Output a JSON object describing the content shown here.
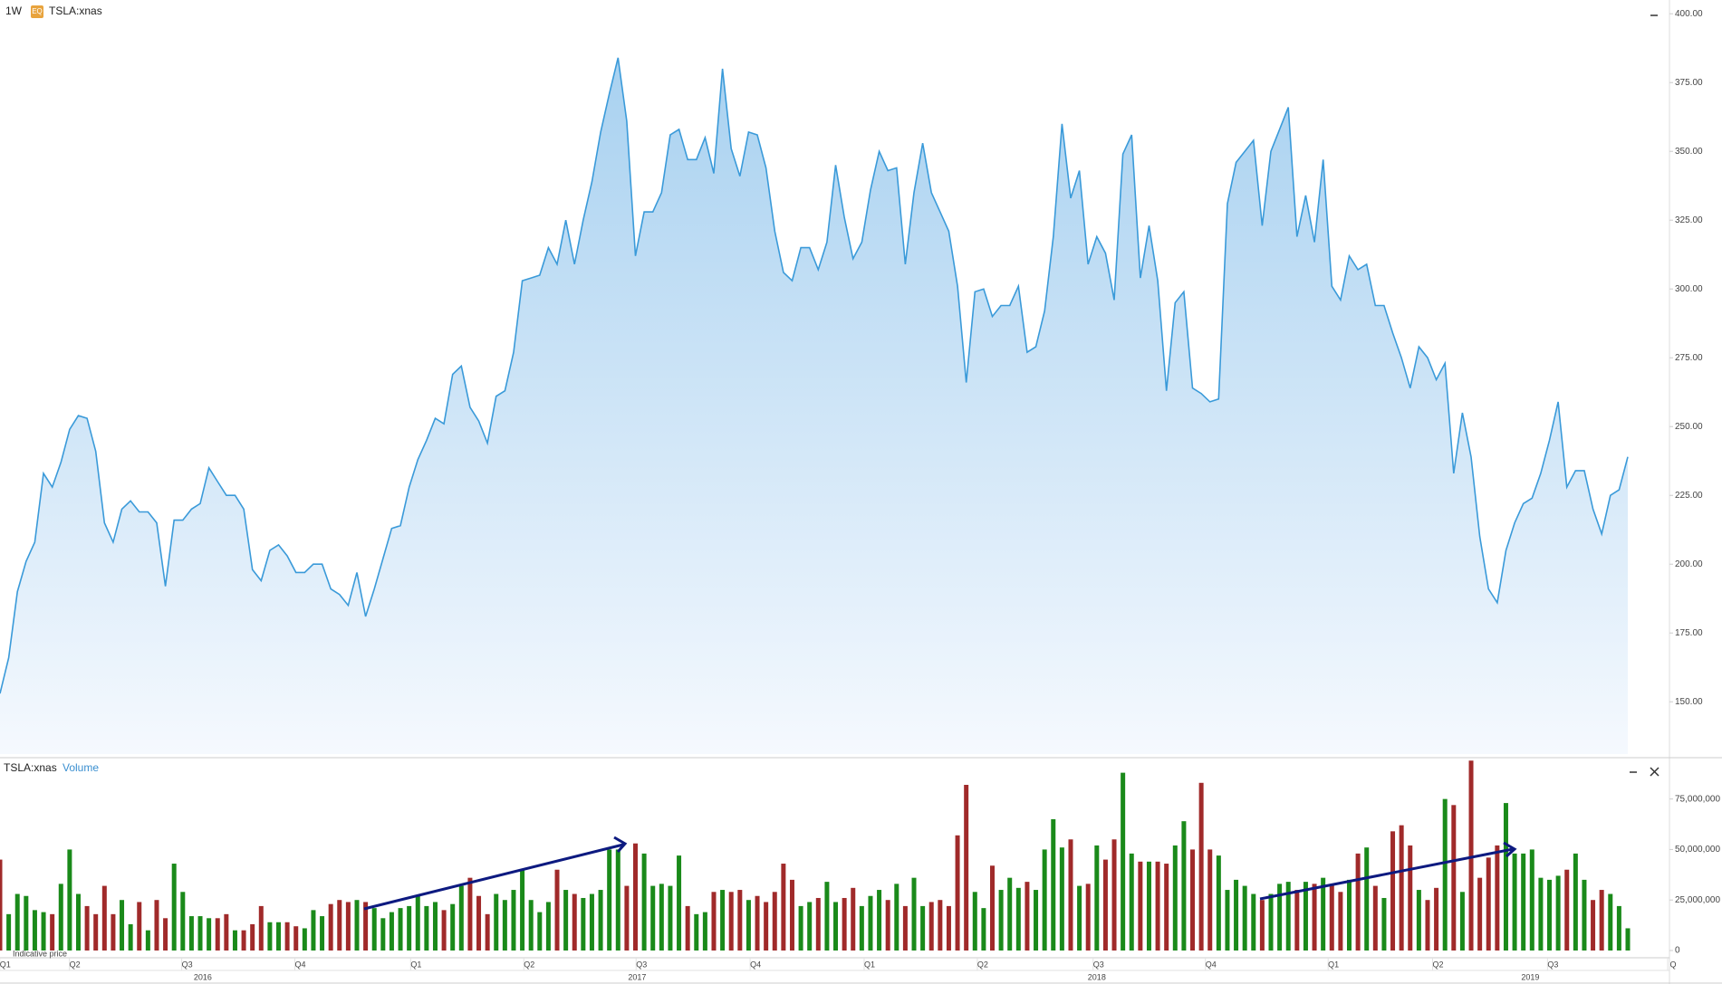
{
  "header": {
    "interval": "1W",
    "badge": "EQ",
    "symbol": "TSLA:xnas",
    "volume_symbol": "TSLA:xnas",
    "volume_label": "Volume",
    "note": "Indicative price"
  },
  "chart_data": [
    {
      "type": "area",
      "color": "#3a9ad9",
      "ylim": [
        131,
        405
      ],
      "yticks": [
        {
          "value": 150,
          "label": "150.00"
        },
        {
          "value": 175,
          "label": "175.00"
        },
        {
          "value": 200,
          "label": "200.00"
        },
        {
          "value": 225,
          "label": "225.00"
        },
        {
          "value": 250,
          "label": "250.00"
        },
        {
          "value": 275,
          "label": "275.00"
        },
        {
          "value": 300,
          "label": "300.00"
        },
        {
          "value": 325,
          "label": "325.00"
        },
        {
          "value": 350,
          "label": "350.00"
        },
        {
          "value": 375,
          "label": "375.00"
        },
        {
          "value": 400,
          "label": "400.00"
        }
      ],
      "values": [
        153,
        166,
        190,
        201,
        208,
        233,
        228,
        237,
        249,
        254,
        253,
        241,
        215,
        208,
        220,
        223,
        219,
        219,
        215,
        192,
        216,
        216,
        220,
        222,
        235,
        230,
        225,
        225,
        220,
        198,
        194,
        205,
        207,
        203,
        197,
        197,
        200,
        200,
        191,
        189,
        185,
        197,
        181,
        191,
        202,
        213,
        214,
        228,
        238,
        245,
        253,
        251,
        269,
        272,
        257,
        252,
        244,
        261,
        263,
        277,
        303,
        304,
        305,
        315,
        309,
        325,
        309,
        325,
        339,
        357,
        371,
        384,
        361,
        312,
        328,
        328,
        335,
        356,
        358,
        347,
        347,
        355,
        342,
        380,
        351,
        341,
        357,
        356,
        344,
        321,
        306,
        303,
        315,
        315,
        307,
        317,
        345,
        326,
        311,
        317,
        336,
        350,
        343,
        344,
        309,
        335,
        353,
        335,
        328,
        321,
        301,
        266,
        299,
        300,
        290,
        294,
        294,
        301,
        277,
        279,
        292,
        319,
        360,
        333,
        343,
        309,
        319,
        313,
        296,
        349,
        356,
        304,
        323,
        303,
        263,
        295,
        299,
        264,
        262,
        259,
        260,
        331,
        346,
        350,
        354,
        323,
        350,
        358,
        366,
        319,
        334,
        317,
        347,
        301,
        296,
        312,
        307,
        309,
        294,
        294,
        284,
        275,
        264,
        279,
        275,
        267,
        273,
        233,
        255,
        239,
        210,
        191,
        186,
        205,
        215,
        222,
        224,
        233,
        245,
        259,
        228,
        234,
        234,
        220,
        211,
        225,
        227,
        239
      ],
      "xticks": [
        {
          "value": 0.6,
          "label": "Q1"
        },
        {
          "value": 8.6,
          "label": "Q2"
        },
        {
          "value": 21.5,
          "label": "Q3"
        },
        {
          "value": 34.5,
          "label": "Q4"
        },
        {
          "value": 47.8,
          "label": "Q1"
        },
        {
          "value": 60.8,
          "label": "Q2"
        },
        {
          "value": 73.7,
          "label": "Q3"
        },
        {
          "value": 86.8,
          "label": "Q4"
        },
        {
          "value": 99.9,
          "label": "Q1"
        },
        {
          "value": 112.9,
          "label": "Q2"
        },
        {
          "value": 126.2,
          "label": "Q3"
        },
        {
          "value": 139.1,
          "label": "Q4"
        },
        {
          "value": 153.2,
          "label": "Q1"
        },
        {
          "value": 165.2,
          "label": "Q2"
        },
        {
          "value": 178.4,
          "label": "Q3"
        },
        {
          "value": 192.2,
          "label": "Q"
        }
      ],
      "years": [
        {
          "value": 23.3,
          "label": "2016"
        },
        {
          "value": 73.2,
          "label": "2017"
        },
        {
          "value": 126,
          "label": "2018"
        },
        {
          "value": 175.8,
          "label": "2019"
        }
      ]
    },
    {
      "type": "bar",
      "up_color": "#1a8a1a",
      "down_color": "#a02a2a",
      "ylim": [
        0,
        95000000
      ],
      "yticks": [
        0,
        {
          "value": 25000000,
          "label": "25,000,000"
        },
        {
          "value": 50000000,
          "label": "50,000,000"
        },
        {
          "value": 75000000,
          "label": "75,000,000"
        }
      ],
      "values": [
        45000000,
        18000000,
        28000000,
        27000000,
        20000000,
        19000000,
        18000000,
        33000000,
        50000000,
        28000000,
        22000000,
        18000000,
        32000000,
        18000000,
        25000000,
        13000000,
        24000000,
        10000000,
        25000000,
        16000000,
        43000000,
        29000000,
        17000000,
        17000000,
        16000000,
        16000000,
        18000000,
        10000000,
        10000000,
        13000000,
        22000000,
        14000000,
        14000000,
        14000000,
        12000000,
        11000000,
        20000000,
        17000000,
        23000000,
        25000000,
        24000000,
        25000000,
        24000000,
        21000000,
        16000000,
        19000000,
        21000000,
        22000000,
        27000000,
        22000000,
        24000000,
        20000000,
        23000000,
        32000000,
        36000000,
        27000000,
        18000000,
        28000000,
        25000000,
        30000000,
        40000000,
        25000000,
        19000000,
        24000000,
        40000000,
        30000000,
        28000000,
        26000000,
        28000000,
        30000000,
        50000000,
        50000000,
        32000000,
        53000000,
        48000000,
        32000000,
        33000000,
        32000000,
        47000000,
        22000000,
        18000000,
        19000000,
        29000000,
        30000000,
        29000000,
        30000000,
        25000000,
        27000000,
        24000000,
        29000000,
        43000000,
        35000000,
        22000000,
        24000000,
        26000000,
        34000000,
        24000000,
        26000000,
        31000000,
        22000000,
        27000000,
        30000000,
        25000000,
        33000000,
        22000000,
        36000000,
        22000000,
        24000000,
        25000000,
        22000000,
        57000000,
        82000000,
        29000000,
        21000000,
        42000000,
        30000000,
        36000000,
        31000000,
        34000000,
        30000000,
        50000000,
        65000000,
        51000000,
        55000000,
        32000000,
        33000000,
        52000000,
        45000000,
        55000000,
        88000000,
        48000000,
        44000000,
        44000000,
        44000000,
        43000000,
        52000000,
        64000000,
        50000000,
        83000000,
        50000000,
        47000000,
        30000000,
        35000000,
        32000000,
        28000000,
        25000000,
        28000000,
        33000000,
        34000000,
        30000000,
        34000000,
        33000000,
        36000000,
        33000000,
        29000000,
        35000000,
        48000000,
        51000000,
        32000000,
        26000000,
        59000000,
        62000000,
        52000000,
        30000000,
        25000000,
        31000000,
        75000000,
        72000000,
        29000000,
        94000000,
        36000000,
        46000000,
        52000000,
        73000000,
        48000000,
        48000000,
        50000000,
        36000000,
        35000000,
        37000000,
        40000000,
        48000000,
        35000000,
        25000000,
        30000000,
        28000000,
        22000000,
        11000000
      ]
    }
  ]
}
